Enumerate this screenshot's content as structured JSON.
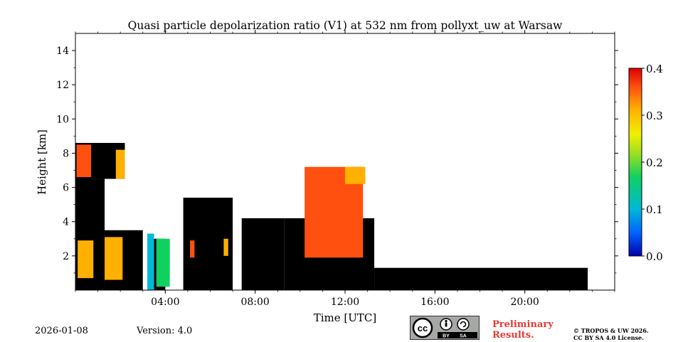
{
  "chart_data": {
    "type": "heatmap",
    "title": "Quasi particle depolarization ratio (V1) at 532 nm from pollyxt_uw at Warsaw",
    "xlabel": "Time [UTC]",
    "ylabel": "Height [km]",
    "x_range_hours": [
      0,
      24
    ],
    "ylim": [
      0,
      15
    ],
    "x_ticks": [
      {
        "value": 4,
        "label": "04:00"
      },
      {
        "value": 8,
        "label": "08:00"
      },
      {
        "value": 12,
        "label": "12:00"
      },
      {
        "value": 16,
        "label": "16:00"
      },
      {
        "value": 20,
        "label": "20:00"
      }
    ],
    "y_ticks": [
      {
        "value": 2,
        "label": "2"
      },
      {
        "value": 4,
        "label": "4"
      },
      {
        "value": 6,
        "label": "6"
      },
      {
        "value": 8,
        "label": "8"
      },
      {
        "value": 10,
        "label": "10"
      },
      {
        "value": 12,
        "label": "12"
      },
      {
        "value": 14,
        "label": "14"
      }
    ],
    "colorbar": {
      "min": 0.0,
      "max": 0.4,
      "ticks": [
        {
          "value": 0.0,
          "label": "0.0"
        },
        {
          "value": 0.1,
          "label": "0.1"
        },
        {
          "value": 0.2,
          "label": "0.2"
        },
        {
          "value": 0.3,
          "label": "0.3"
        },
        {
          "value": 0.4,
          "label": "0.4"
        }
      ],
      "colors": [
        "#0000aa",
        "#0060ff",
        "#00b8d8",
        "#10d060",
        "#a0e020",
        "#f0f000",
        "#ffb000",
        "#ff5010",
        "#dd0000"
      ]
    },
    "no_data_color": "#000000",
    "regions": [
      {
        "name": "low-level-black",
        "t0": 0.0,
        "t1": 1.3,
        "h0": 0.0,
        "h1": 6.5,
        "value": null
      },
      {
        "name": "upper-black-early",
        "t0": 0.0,
        "t1": 2.2,
        "h0": 6.5,
        "h1": 8.6,
        "value": null
      },
      {
        "name": "morning-black",
        "t0": 1.3,
        "t1": 3.0,
        "h0": 0.0,
        "h1": 3.5,
        "value": null
      },
      {
        "name": "black-band-04",
        "t0": 3.4,
        "t1": 4.0,
        "h0": 0.0,
        "h1": 3.0,
        "value": null
      },
      {
        "name": "midday-black",
        "t0": 4.8,
        "t1": 7.0,
        "h0": 0.0,
        "h1": 5.4,
        "value": null
      },
      {
        "name": "black-0800",
        "t0": 7.4,
        "t1": 9.3,
        "h0": 0.0,
        "h1": 4.2,
        "value": null
      },
      {
        "name": "aerosol-layer",
        "t0": 9.3,
        "t1": 13.3,
        "h0": 0.0,
        "h1": 4.2,
        "value": null
      },
      {
        "name": "afternoon-low-black",
        "t0": 13.3,
        "t1": 22.8,
        "h0": 0.0,
        "h1": 1.3,
        "value": null
      },
      {
        "name": "cloud-0100",
        "t0": 0.1,
        "t1": 0.8,
        "h0": 0.7,
        "h1": 2.9,
        "value": 0.3
      },
      {
        "name": "cloud-0130",
        "t0": 1.3,
        "t1": 2.1,
        "h0": 0.6,
        "h1": 3.1,
        "value": 0.28
      },
      {
        "name": "cloud-0730",
        "t0": 0.05,
        "t1": 0.7,
        "h0": 6.6,
        "h1": 8.5,
        "value": 0.33
      },
      {
        "name": "cloud-0200-high",
        "t0": 1.8,
        "t1": 2.2,
        "h0": 6.5,
        "h1": 8.2,
        "value": 0.32
      },
      {
        "name": "dust-plume",
        "t0": 10.2,
        "t1": 12.8,
        "h0": 1.9,
        "h1": 7.2,
        "value": 0.33
      },
      {
        "name": "dust-patch-high",
        "t0": 12.0,
        "t1": 12.9,
        "h0": 6.2,
        "h1": 7.2,
        "value": 0.31
      },
      {
        "name": "blue-column-0330",
        "t0": 3.2,
        "t1": 3.5,
        "h0": 0.0,
        "h1": 3.3,
        "value": 0.1
      },
      {
        "name": "green-column-0345",
        "t0": 3.6,
        "t1": 4.2,
        "h0": 0.2,
        "h1": 3.0,
        "value": 0.16
      },
      {
        "name": "spot-0520",
        "t0": 5.1,
        "t1": 5.3,
        "h0": 1.9,
        "h1": 2.9,
        "value": 0.35
      },
      {
        "name": "spot-0640",
        "t0": 6.6,
        "t1": 6.8,
        "h0": 2.0,
        "h1": 3.0,
        "value": 0.3
      }
    ]
  },
  "footer": {
    "date": "2026-01-08",
    "version": "Version: 4.0",
    "preliminary_line1": "Preliminary",
    "preliminary_line2": "Results.",
    "copyright_line1": "© TROPOS & UW 2026.",
    "copyright_line2": "CC BY SA 4.0 License.",
    "license_badge": {
      "cc": "cc",
      "by": "BY",
      "sa": "SA"
    }
  }
}
